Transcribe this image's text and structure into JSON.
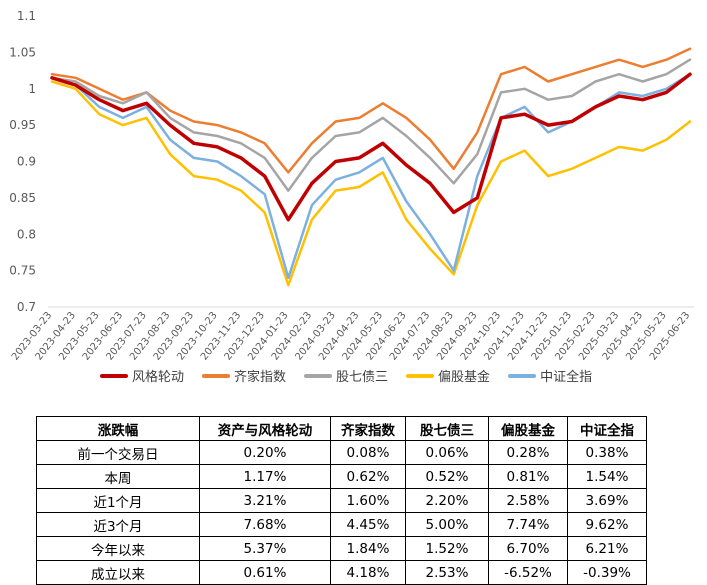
{
  "colors": {
    "风格轮动": "#c00000",
    "齐家指数": "#ed7d31",
    "股七债三": "#a5a5a5",
    "偏股基金": "#ffc000",
    "中证全指": "#7cb0e0",
    "axis": "#d9d9d9",
    "tick_text": "#595959"
  },
  "chart_data": {
    "type": "line",
    "ylim": [
      0.7,
      1.1
    ],
    "yticks": [
      "0.7",
      "0.75",
      "0.8",
      "0.85",
      "0.9",
      "0.95",
      "1",
      "1.05",
      "1.1"
    ],
    "x": [
      "2023-03-23",
      "2023-04-23",
      "2023-05-23",
      "2023-06-23",
      "2023-07-23",
      "2023-08-23",
      "2023-09-23",
      "2023-10-23",
      "2023-11-23",
      "2023-12-23",
      "2024-01-23",
      "2024-02-23",
      "2024-03-23",
      "2024-04-23",
      "2024-05-23",
      "2024-06-23",
      "2024-07-23",
      "2024-08-23",
      "2024-09-23",
      "2024-10-23",
      "2024-11-23",
      "2024-12-23",
      "2025-01-23",
      "2025-02-23",
      "2025-03-23",
      "2025-04-23",
      "2025-05-23",
      "2025-06-23"
    ],
    "series": [
      {
        "name": "风格轮动",
        "values": [
          1.015,
          1.005,
          0.985,
          0.97,
          0.98,
          0.95,
          0.925,
          0.92,
          0.905,
          0.88,
          0.82,
          0.87,
          0.9,
          0.905,
          0.925,
          0.895,
          0.87,
          0.83,
          0.85,
          0.96,
          0.965,
          0.95,
          0.955,
          0.975,
          0.99,
          0.985,
          0.995,
          1.02
        ]
      },
      {
        "name": "齐家指数",
        "values": [
          1.02,
          1.015,
          1.0,
          0.985,
          0.995,
          0.97,
          0.955,
          0.95,
          0.94,
          0.925,
          0.885,
          0.925,
          0.955,
          0.96,
          0.98,
          0.96,
          0.93,
          0.89,
          0.94,
          1.02,
          1.03,
          1.01,
          1.02,
          1.03,
          1.04,
          1.03,
          1.04,
          1.055
        ]
      },
      {
        "name": "股七债三",
        "values": [
          1.015,
          1.01,
          0.99,
          0.98,
          0.995,
          0.96,
          0.94,
          0.935,
          0.925,
          0.905,
          0.86,
          0.905,
          0.935,
          0.94,
          0.96,
          0.935,
          0.905,
          0.87,
          0.91,
          0.995,
          1.0,
          0.985,
          0.99,
          1.01,
          1.02,
          1.01,
          1.02,
          1.04
        ]
      },
      {
        "name": "偏股基金",
        "values": [
          1.01,
          1.0,
          0.965,
          0.95,
          0.96,
          0.91,
          0.88,
          0.875,
          0.86,
          0.83,
          0.73,
          0.82,
          0.86,
          0.865,
          0.885,
          0.82,
          0.78,
          0.745,
          0.84,
          0.9,
          0.915,
          0.88,
          0.89,
          0.905,
          0.92,
          0.915,
          0.93,
          0.955
        ]
      },
      {
        "name": "中证全指",
        "values": [
          1.015,
          1.005,
          0.975,
          0.96,
          0.975,
          0.93,
          0.905,
          0.9,
          0.88,
          0.855,
          0.74,
          0.84,
          0.875,
          0.885,
          0.905,
          0.845,
          0.8,
          0.75,
          0.88,
          0.96,
          0.975,
          0.94,
          0.955,
          0.975,
          0.995,
          0.99,
          1.0,
          1.02
        ]
      }
    ]
  },
  "table": {
    "headers": [
      "涨跌幅",
      "资产与风格轮动",
      "齐家指数",
      "股七债三",
      "偏股基金",
      "中证全指"
    ],
    "rows": [
      [
        "前一个交易日",
        "0.20%",
        "0.08%",
        "0.06%",
        "0.28%",
        "0.38%"
      ],
      [
        "本周",
        "1.17%",
        "0.62%",
        "0.52%",
        "0.81%",
        "1.54%"
      ],
      [
        "近1个月",
        "3.21%",
        "1.60%",
        "2.20%",
        "2.58%",
        "3.69%"
      ],
      [
        "近3个月",
        "7.68%",
        "4.45%",
        "5.00%",
        "7.74%",
        "9.62%"
      ],
      [
        "今年以来",
        "5.37%",
        "1.84%",
        "1.52%",
        "6.70%",
        "6.21%"
      ],
      [
        "成立以来",
        "0.61%",
        "4.18%",
        "2.53%",
        "-6.52%",
        "-0.39%"
      ]
    ]
  }
}
